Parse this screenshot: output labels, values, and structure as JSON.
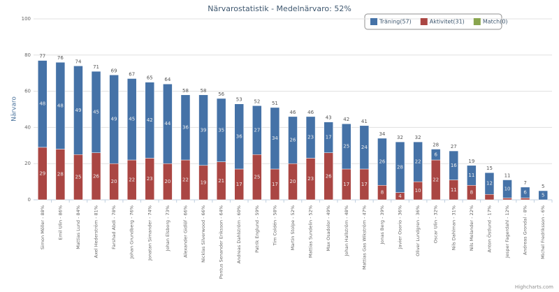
{
  "chart_data": {
    "type": "bar",
    "stacked": true,
    "title": "Närvarostatistik - Medelnärvaro: 52%",
    "y_label": "Närvaro",
    "credit": "Highcharts.com",
    "categories": [
      "Simon Möller - 88%",
      "Emil Ulin - 86%",
      "Mattias Lund - 84%",
      "Axel Hederström - 81%",
      "Farshad Abdi - 78%",
      "Johan Grundberg - 76%",
      "Jonatan Simander - 74%",
      "Johan Elsborg - 73%",
      "Alexander Gidlöf - 66%",
      "Nicklas Silverwood - 66%",
      "Pontus Senander Eriksson - 64%",
      "Andreas Dahlström - 60%",
      "Patrik Englund - 59%",
      "Tim Coldén - 58%",
      "Martin Stolpe - 52%",
      "Mattias Sundelin - 52%",
      "Max Osadolor - 49%",
      "Johan Hallström - 48%",
      "Mattias Gas Wikström - 47%",
      "Jonas Berg - 39%",
      "Javier Osorio - 36%",
      "Oliver Lundgren - 36%",
      "Oscar Ulin - 32%",
      "Nils Dahlman - 31%",
      "Nils Melander - 22%",
      "Anton Östlund - 17%",
      "Jesper Fagerdahl - 12%",
      "Andreas Grondal - 8%",
      "Michel Fredriksson - 6%"
    ],
    "series": [
      {
        "name": "Träning(57)",
        "color": "#4572A7",
        "values": [
          48,
          48,
          49,
          45,
          49,
          45,
          42,
          44,
          36,
          39,
          35,
          36,
          27,
          34,
          26,
          23,
          17,
          25,
          24,
          26,
          28,
          22,
          6,
          16,
          11,
          12,
          10,
          6,
          5
        ]
      },
      {
        "name": "Aktivitet(31)",
        "color": "#AA4643",
        "values": [
          29,
          28,
          25,
          26,
          20,
          22,
          23,
          20,
          22,
          19,
          21,
          17,
          25,
          17,
          20,
          23,
          26,
          17,
          17,
          8,
          4,
          10,
          22,
          11,
          8,
          3,
          1,
          1,
          0
        ]
      },
      {
        "name": "Match(0)",
        "color": "#89A54E",
        "values": [
          0,
          0,
          0,
          0,
          0,
          0,
          0,
          0,
          0,
          0,
          0,
          0,
          0,
          0,
          0,
          0,
          0,
          0,
          0,
          0,
          0,
          0,
          0,
          0,
          0,
          0,
          0,
          0,
          0
        ]
      }
    ],
    "totals": [
      77,
      76,
      74,
      71,
      69,
      67,
      65,
      64,
      58,
      58,
      56,
      53,
      52,
      51,
      46,
      46,
      43,
      42,
      41,
      34,
      32,
      32,
      28,
      27,
      19,
      15,
      11,
      7,
      5
    ],
    "ylim": [
      0,
      100
    ],
    "yticks": [
      0,
      20,
      40,
      60,
      80,
      100
    ],
    "grid": true,
    "legend": "top-right"
  }
}
